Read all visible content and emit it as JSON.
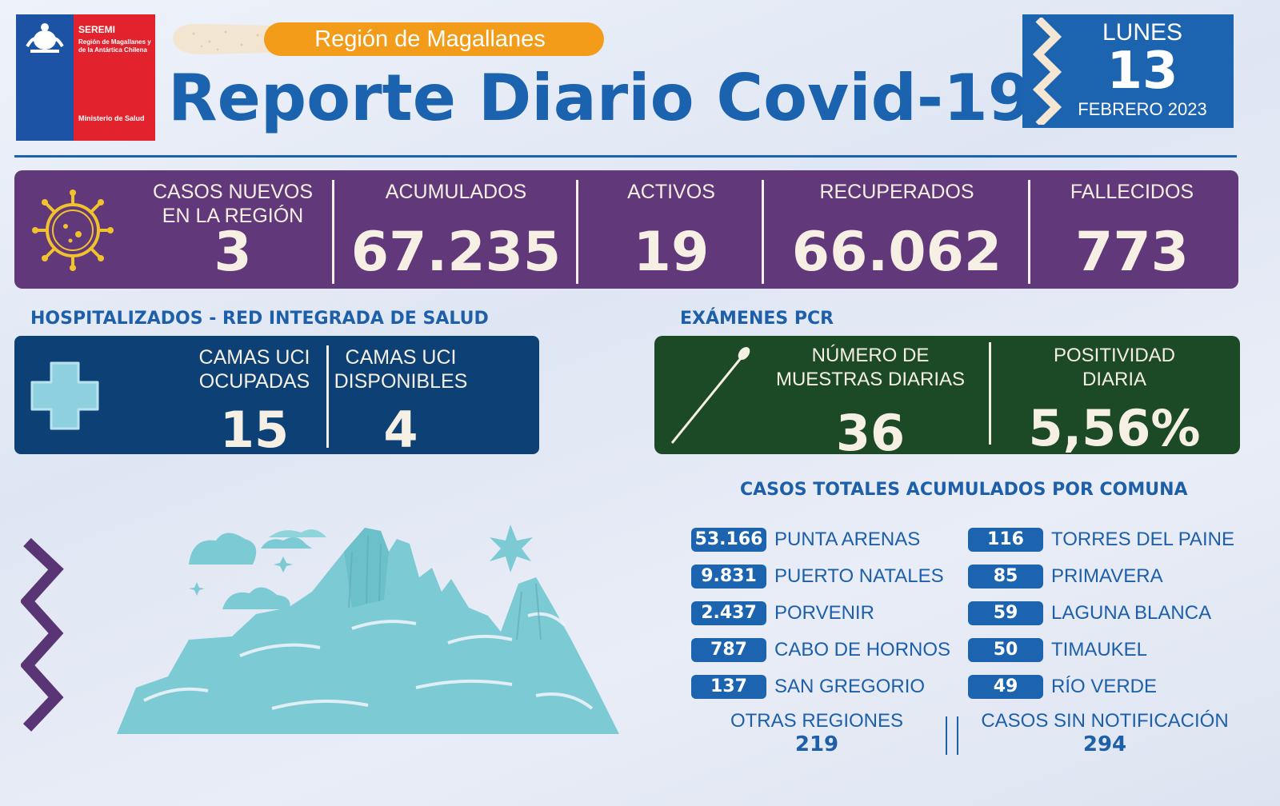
{
  "logo": {
    "seremi": "SEREMI",
    "region_line": "Región de Magallanes y de la Antártica Chilena",
    "ministry": "Ministerio de Salud"
  },
  "header": {
    "region": "Región de Magallanes",
    "title": "Reporte Diario Covid-19"
  },
  "date": {
    "weekday": "LUNES",
    "day": "13",
    "month_year": "FEBRERO 2023"
  },
  "stats": {
    "new_cases_label": "CASOS NUEVOS EN LA REGIÓN",
    "new_cases": "3",
    "accumulated_label": "ACUMULADOS",
    "accumulated": "67.235",
    "active_label": "ACTIVOS",
    "active": "19",
    "recovered_label": "RECUPERADOS",
    "recovered": "66.062",
    "deceased_label": "FALLECIDOS",
    "deceased": "773"
  },
  "hospital": {
    "heading": "HOSPITALIZADOS - RED INTEGRADA DE SALUD",
    "icu_occupied_label": "CAMAS UCI OCUPADAS",
    "icu_occupied": "15",
    "icu_available_label": "CAMAS UCI DISPONIBLES",
    "icu_available": "4"
  },
  "pcr": {
    "heading": "EXÁMENES PCR",
    "samples_label": "NÚMERO DE MUESTRAS DIARIAS",
    "samples": "36",
    "positivity_label": "POSITIVIDAD DIARIA",
    "positivity": "5,56%"
  },
  "comunas": {
    "title": "CASOS TOTALES ACUMULADOS POR COMUNA",
    "left": [
      {
        "value": "53.166",
        "name": "PUNTA ARENAS"
      },
      {
        "value": "9.831",
        "name": "PUERTO NATALES"
      },
      {
        "value": "2.437",
        "name": "PORVENIR"
      },
      {
        "value": "787",
        "name": "CABO DE HORNOS"
      },
      {
        "value": "137",
        "name": "SAN GREGORIO"
      }
    ],
    "right": [
      {
        "value": "116",
        "name": "TORRES DEL PAINE"
      },
      {
        "value": "85",
        "name": "PRIMAVERA"
      },
      {
        "value": "59",
        "name": "LAGUNA BLANCA"
      },
      {
        "value": "50",
        "name": "TIMAUKEL"
      },
      {
        "value": "49",
        "name": "RÍO VERDE"
      }
    ],
    "other_regions_label": "OTRAS REGIONES",
    "other_regions": "219",
    "no_notification_label": "CASOS SIN NOTIFICACIÓN",
    "no_notification": "294"
  },
  "colors": {
    "blue_title": "#1b63ae",
    "orange": "#f39c1a",
    "purple": "#61397a",
    "navy": "#0d4175",
    "green": "#1c4a27",
    "teal": "#6cc3cf",
    "cream": "#f6efe3"
  },
  "icons": [
    "coat-of-arms-icon",
    "virus-icon",
    "cross-icon",
    "swab-icon",
    "mountains-illustration",
    "zigzag-decoration"
  ]
}
